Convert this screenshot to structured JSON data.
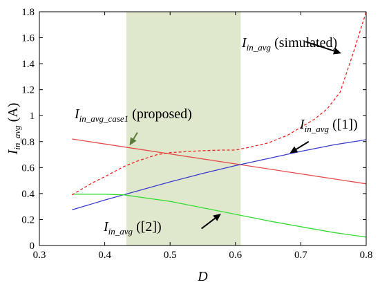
{
  "chart_data": {
    "type": "line",
    "xlabel": "D",
    "ylabel": "I_in_avg (A)",
    "ylabel_parts": {
      "main": "I",
      "sub": "in_avg",
      "unit": " (A)"
    },
    "xlim": [
      0.3,
      0.8
    ],
    "ylim": [
      0,
      1.8
    ],
    "xticks": [
      "0.3",
      "0.4",
      "0.5",
      "0.6",
      "0.7",
      "0.8"
    ],
    "yticks": [
      "0",
      "0.2",
      "0.4",
      "0.6",
      "0.8",
      "1",
      "1.2",
      "1.4",
      "1.6",
      "1.8"
    ],
    "grid": false,
    "shaded_region": {
      "x": [
        0.433,
        0.608
      ],
      "color": "#dfe8cc"
    },
    "series": [
      {
        "color": "#e84a4a",
        "style": "solid",
        "x": [
          0.35,
          0.8
        ],
        "y": [
          0.82,
          0.475
        ]
      },
      {
        "color": "#3a3acc",
        "style": "solid",
        "x": [
          0.35,
          0.4,
          0.45,
          0.5,
          0.55,
          0.6,
          0.65,
          0.7,
          0.75,
          0.8
        ],
        "y": [
          0.275,
          0.35,
          0.42,
          0.49,
          0.555,
          0.615,
          0.67,
          0.725,
          0.775,
          0.815
        ]
      },
      {
        "color": "#33dd33",
        "style": "solid",
        "x": [
          0.35,
          0.4,
          0.43,
          0.45,
          0.5,
          0.55,
          0.6,
          0.65,
          0.7,
          0.75,
          0.8
        ],
        "y": [
          0.395,
          0.395,
          0.39,
          0.375,
          0.34,
          0.29,
          0.24,
          0.19,
          0.145,
          0.1,
          0.065
        ]
      },
      {
        "color": "#ee2222",
        "style": "dashed",
        "x": [
          0.35,
          0.38,
          0.4,
          0.43,
          0.45,
          0.48,
          0.5,
          0.53,
          0.55,
          0.58,
          0.6,
          0.62,
          0.65,
          0.68,
          0.7,
          0.72,
          0.74,
          0.76,
          0.78,
          0.8
        ],
        "y": [
          0.39,
          0.48,
          0.53,
          0.61,
          0.65,
          0.7,
          0.715,
          0.725,
          0.73,
          0.735,
          0.735,
          0.755,
          0.79,
          0.85,
          0.91,
          0.97,
          1.05,
          1.18,
          1.48,
          1.8
        ]
      }
    ],
    "annotations": [
      {
        "id": "simulated",
        "main": "I",
        "sub": "in_avg",
        "text": " (simulated)",
        "tip": [
          0.762,
          1.48
        ],
        "tail": [
          0.707,
          1.57
        ]
      },
      {
        "id": "proposed",
        "main": "I",
        "sub": "in_avg_case1",
        "text": " (proposed)",
        "tip": [
          0.438,
          0.77
        ],
        "tail": [
          0.45,
          0.87
        ]
      },
      {
        "id": "ref1",
        "main": "I",
        "sub": "in_avg",
        "text": " ([1])",
        "tip": [
          0.683,
          0.71
        ],
        "tail": [
          0.712,
          0.8
        ]
      },
      {
        "id": "ref2",
        "main": "I",
        "sub": "in_avg",
        "text": " ([2])",
        "tip": [
          0.578,
          0.245
        ],
        "tail": [
          0.548,
          0.13
        ]
      }
    ]
  }
}
